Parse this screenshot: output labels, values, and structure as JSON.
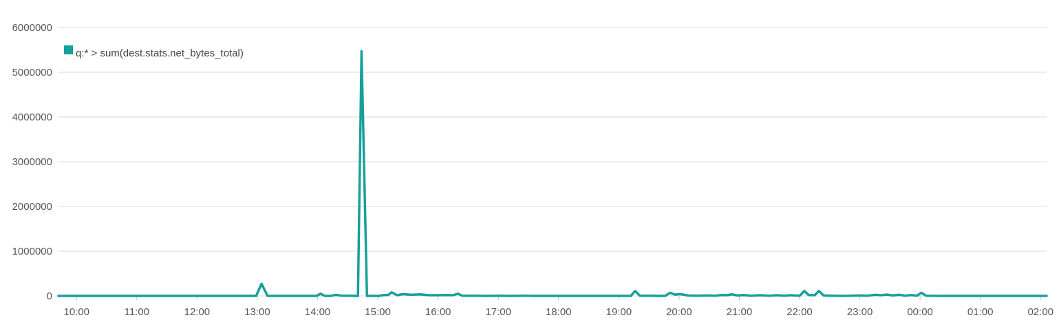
{
  "chart_data": {
    "type": "line",
    "title": "",
    "xlabel": "",
    "ylabel": "",
    "ylim": [
      0,
      6000000
    ],
    "yticks": [
      "0",
      "1000000",
      "2000000",
      "3000000",
      "4000000",
      "5000000",
      "6000000"
    ],
    "xticks": [
      {
        "label": "10:00",
        "t": 10
      },
      {
        "label": "11:00",
        "t": 11
      },
      {
        "label": "12:00",
        "t": 12
      },
      {
        "label": "13:00",
        "t": 13
      },
      {
        "label": "14:00",
        "t": 14
      },
      {
        "label": "15:00",
        "t": 15
      },
      {
        "label": "16:00",
        "t": 16
      },
      {
        "label": "17:00",
        "t": 17
      },
      {
        "label": "18:00",
        "t": 18
      },
      {
        "label": "19:00",
        "t": 19
      },
      {
        "label": "20:00",
        "t": 20
      },
      {
        "label": "21:00",
        "t": 21
      },
      {
        "label": "22:00",
        "t": 22
      },
      {
        "label": "23:00",
        "t": 23
      },
      {
        "label": "00:00",
        "t": 24
      },
      {
        "label": "01:00",
        "t": 25
      },
      {
        "label": "02:00",
        "t": 26
      }
    ],
    "xlim": [
      9.7,
      26.1
    ],
    "grid": true,
    "legend": "top-left",
    "series": [
      {
        "name": "q:* > sum(dest.stats.net_bytes_total)",
        "color": "#16a09a",
        "points": [
          [
            9.7,
            0
          ],
          [
            12.98,
            0
          ],
          [
            13.07,
            270000
          ],
          [
            13.17,
            0
          ],
          [
            13.3,
            0
          ],
          [
            13.98,
            0
          ],
          [
            14.05,
            50000
          ],
          [
            14.12,
            0
          ],
          [
            14.22,
            0
          ],
          [
            14.3,
            25000
          ],
          [
            14.4,
            5000
          ],
          [
            14.5,
            5000
          ],
          [
            14.62,
            0
          ],
          [
            14.67,
            0
          ],
          [
            14.73,
            5470000
          ],
          [
            14.82,
            0
          ],
          [
            14.92,
            0
          ],
          [
            15.02,
            0
          ],
          [
            15.1,
            20000
          ],
          [
            15.17,
            20000
          ],
          [
            15.23,
            80000
          ],
          [
            15.32,
            15000
          ],
          [
            15.42,
            40000
          ],
          [
            15.55,
            25000
          ],
          [
            15.7,
            35000
          ],
          [
            15.85,
            15000
          ],
          [
            16.0,
            15000
          ],
          [
            16.15,
            20000
          ],
          [
            16.25,
            15000
          ],
          [
            16.33,
            50000
          ],
          [
            16.4,
            5000
          ],
          [
            16.6,
            5000
          ],
          [
            16.8,
            0
          ],
          [
            17.0,
            5000
          ],
          [
            17.2,
            0
          ],
          [
            17.4,
            5000
          ],
          [
            17.6,
            0
          ],
          [
            17.8,
            0
          ],
          [
            18.0,
            0
          ],
          [
            18.2,
            0
          ],
          [
            18.5,
            0
          ],
          [
            18.8,
            0
          ],
          [
            19.1,
            0
          ],
          [
            19.2,
            0
          ],
          [
            19.27,
            110000
          ],
          [
            19.35,
            5000
          ],
          [
            19.5,
            5000
          ],
          [
            19.7,
            0
          ],
          [
            19.77,
            0
          ],
          [
            19.85,
            70000
          ],
          [
            19.93,
            30000
          ],
          [
            20.02,
            40000
          ],
          [
            20.15,
            10000
          ],
          [
            20.3,
            5000
          ],
          [
            20.5,
            10000
          ],
          [
            20.6,
            5000
          ],
          [
            20.7,
            20000
          ],
          [
            20.8,
            15000
          ],
          [
            20.87,
            35000
          ],
          [
            20.97,
            10000
          ],
          [
            21.07,
            20000
          ],
          [
            21.2,
            5000
          ],
          [
            21.35,
            15000
          ],
          [
            21.5,
            5000
          ],
          [
            21.62,
            15000
          ],
          [
            21.75,
            5000
          ],
          [
            21.85,
            15000
          ],
          [
            22.0,
            5000
          ],
          [
            22.08,
            110000
          ],
          [
            22.15,
            20000
          ],
          [
            22.25,
            15000
          ],
          [
            22.32,
            110000
          ],
          [
            22.4,
            10000
          ],
          [
            22.55,
            5000
          ],
          [
            22.7,
            0
          ],
          [
            22.85,
            5000
          ],
          [
            23.0,
            10000
          ],
          [
            23.12,
            5000
          ],
          [
            23.25,
            25000
          ],
          [
            23.35,
            15000
          ],
          [
            23.45,
            30000
          ],
          [
            23.55,
            10000
          ],
          [
            23.65,
            25000
          ],
          [
            23.75,
            5000
          ],
          [
            23.85,
            20000
          ],
          [
            23.95,
            5000
          ],
          [
            24.02,
            70000
          ],
          [
            24.1,
            5000
          ],
          [
            24.3,
            0
          ],
          [
            24.6,
            0
          ],
          [
            25.0,
            0
          ],
          [
            25.5,
            0
          ],
          [
            26.1,
            0
          ]
        ]
      }
    ]
  }
}
